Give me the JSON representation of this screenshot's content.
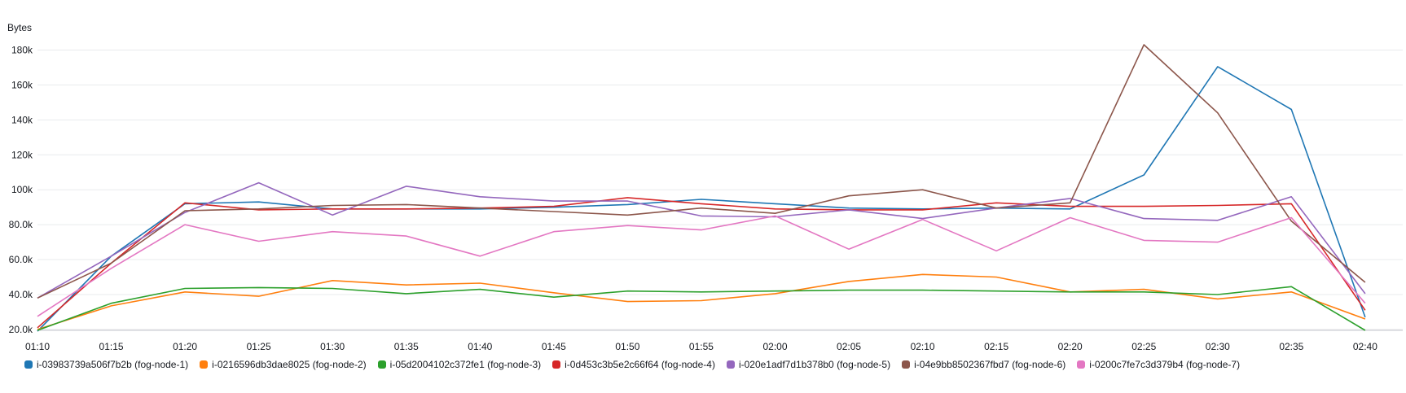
{
  "chart_data": {
    "type": "line",
    "ylabel": "Bytes",
    "x": [
      "01:10",
      "01:15",
      "01:20",
      "01:25",
      "01:30",
      "01:35",
      "01:40",
      "01:45",
      "01:50",
      "01:55",
      "02:00",
      "02:05",
      "02:10",
      "02:15",
      "02:20",
      "02:25",
      "02:30",
      "02:35",
      "02:40"
    ],
    "y_ticks": [
      "20.0k",
      "40.0k",
      "60.0k",
      "80.0k",
      "100k",
      "120k",
      "140k",
      "160k",
      "180k"
    ],
    "y_tick_values": [
      20000,
      40000,
      60000,
      80000,
      100000,
      120000,
      140000,
      160000,
      180000
    ],
    "ylim": [
      19500,
      190000
    ],
    "grid": true,
    "legend_position": "bottom",
    "series": [
      {
        "name": "i-03983739a506f7b2b (fog-node-1)",
        "color": "#1f77b4",
        "values": [
          19000,
          62000,
          92000,
          93000,
          89000,
          89000,
          89000,
          90000,
          91500,
          94500,
          92000,
          89500,
          89000,
          89500,
          89000,
          108500,
          170500,
          146000,
          27000
        ]
      },
      {
        "name": "i-0216596db3dae8025 (fog-node-2)",
        "color": "#ff7f0e",
        "values": [
          20000,
          33500,
          41500,
          39000,
          48000,
          45500,
          46500,
          41000,
          36000,
          36500,
          40500,
          47500,
          51500,
          50000,
          41500,
          43000,
          37500,
          41500,
          26000
        ]
      },
      {
        "name": "i-05d2004102c372fe1 (fog-node-3)",
        "color": "#2ca02c",
        "values": [
          19500,
          35000,
          43500,
          44000,
          43500,
          40500,
          43000,
          38500,
          42000,
          41500,
          42000,
          42500,
          42500,
          42000,
          41500,
          41500,
          40000,
          44500,
          19500
        ]
      },
      {
        "name": "i-0d453c3b5e2c66f64 (fog-node-4)",
        "color": "#d62728",
        "values": [
          21000,
          58000,
          92500,
          88500,
          89000,
          89000,
          89500,
          90500,
          95500,
          92000,
          89000,
          88500,
          88500,
          92500,
          90500,
          90500,
          91000,
          92000,
          31000
        ]
      },
      {
        "name": "i-020e1adf7d1b378b0 (fog-node-5)",
        "color": "#9467bd",
        "values": [
          38000,
          62000,
          87000,
          104000,
          85500,
          102000,
          96000,
          93500,
          93500,
          85000,
          84500,
          88500,
          83500,
          89500,
          95000,
          83500,
          82500,
          96000,
          40500
        ]
      },
      {
        "name": "i-04e9bb8502367fbd7 (fog-node-6)",
        "color": "#8c564b",
        "values": [
          38000,
          58000,
          88000,
          89000,
          91000,
          91500,
          89500,
          87500,
          85500,
          89500,
          86500,
          96500,
          100000,
          89500,
          92500,
          183000,
          144000,
          82000,
          47000
        ]
      },
      {
        "name": "i-0200c7fe7c3d379b4 (fog-node-7)",
        "color": "#e377c2",
        "values": [
          27500,
          55000,
          80000,
          70500,
          76000,
          73500,
          62000,
          76000,
          79500,
          77000,
          85000,
          66000,
          83000,
          65000,
          84000,
          71000,
          70000,
          84000,
          35000
        ]
      }
    ]
  }
}
